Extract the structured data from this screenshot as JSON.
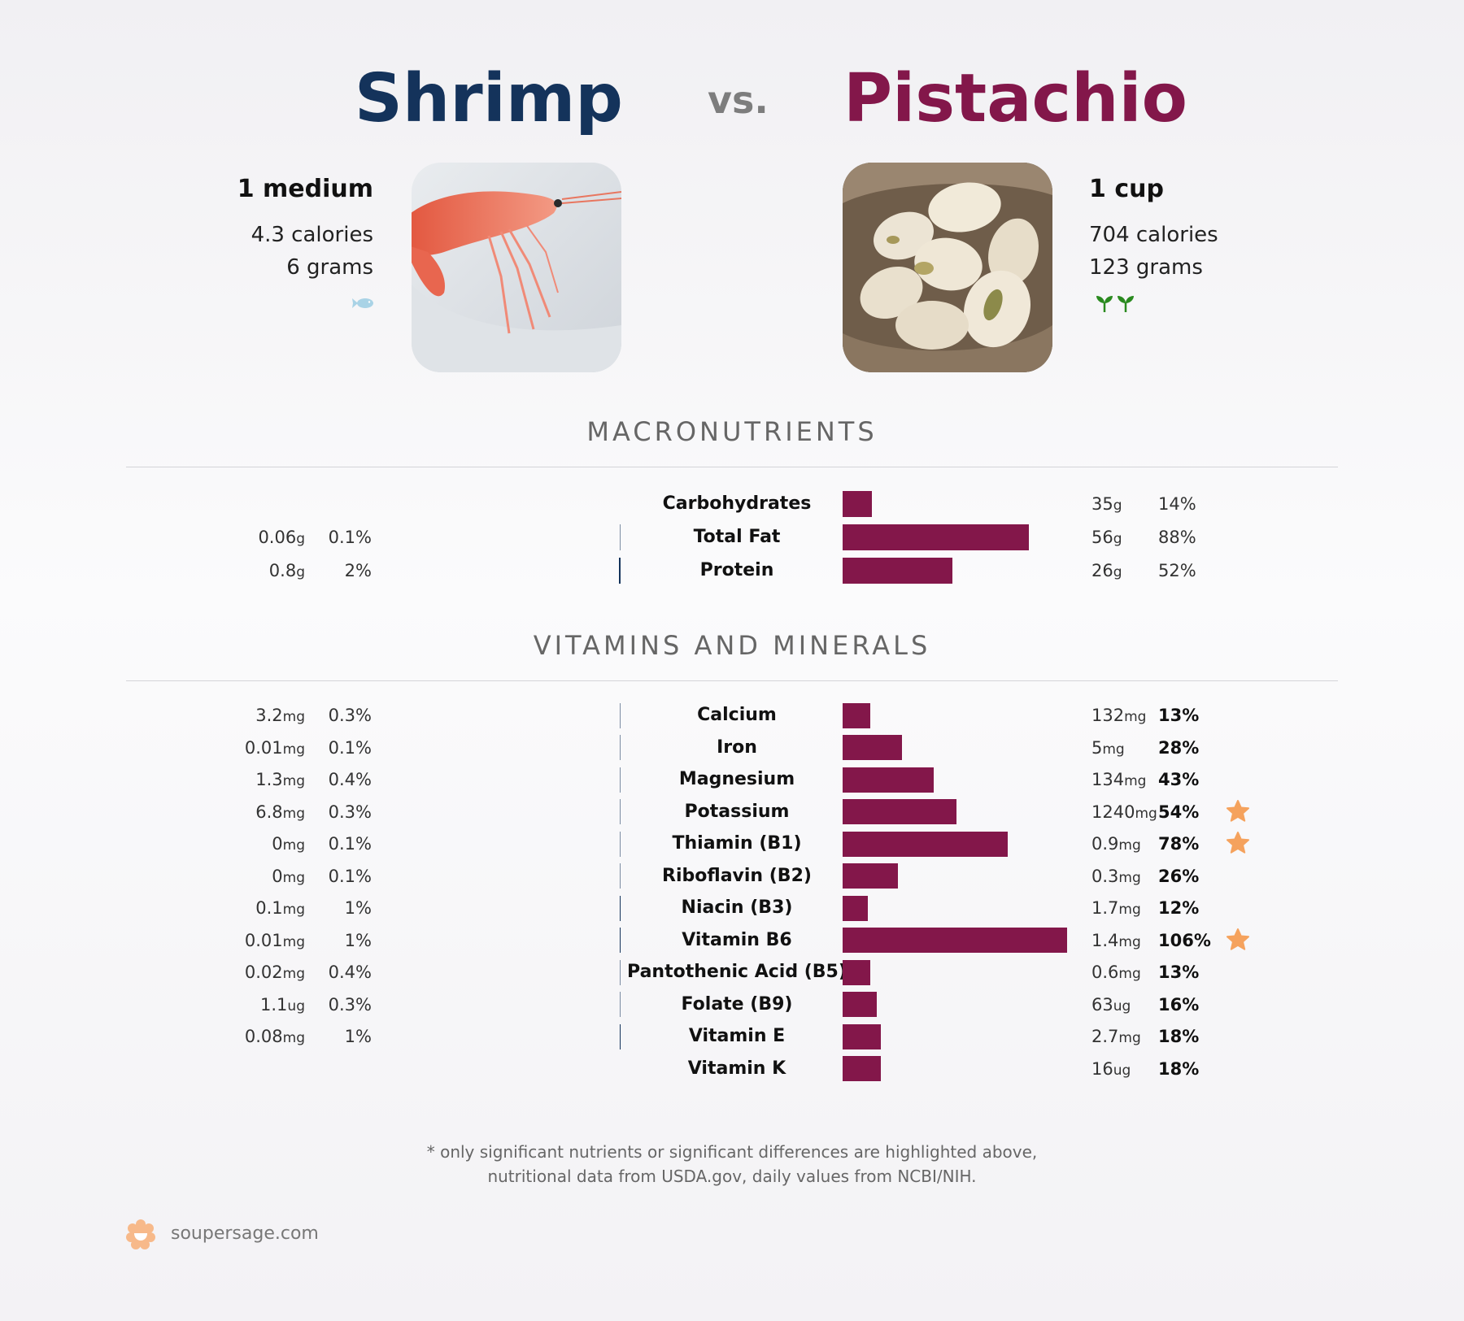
{
  "header": {
    "left_food": "Shrimp",
    "vs": "vs.",
    "right_food": "Pistachio"
  },
  "left": {
    "serving": "1 medium",
    "calories": "4.3 calories",
    "grams": "6 grams",
    "category_icon": "fish-icon",
    "image": "shrimp photo"
  },
  "right": {
    "serving": "1 cup",
    "calories": "704 calories",
    "grams": "123 grams",
    "category_icon": "sprout-icon",
    "image": "pistachio photo"
  },
  "colors": {
    "left": "#14335b",
    "right": "#83174a",
    "star": "#f5a25d"
  },
  "sections": {
    "macros_title": "MACRONUTRIENTS",
    "vitamins_title": "VITAMINS AND MINERALS"
  },
  "chart_data": [
    {
      "type": "bar",
      "title": "MACRONUTRIENTS",
      "categories": [
        "Carbohydrates",
        "Total Fat",
        "Protein"
      ],
      "series": [
        {
          "name": "Shrimp",
          "values_pct": [
            null,
            0.1,
            2
          ],
          "amounts": [
            null,
            {
              "num": "0.06",
              "unit": "g"
            },
            {
              "num": "0.8",
              "unit": "g"
            }
          ],
          "pct_labels": [
            null,
            "0.1%",
            "2%"
          ]
        },
        {
          "name": "Pistachio",
          "values_pct": [
            14,
            88,
            52
          ],
          "amounts": [
            {
              "num": "35",
              "unit": "g"
            },
            {
              "num": "56",
              "unit": "g"
            },
            {
              "num": "26",
              "unit": "g"
            }
          ],
          "pct_labels": [
            "14%",
            "88%",
            "52%"
          ],
          "highlight": [
            false,
            false,
            false
          ]
        }
      ]
    },
    {
      "type": "bar",
      "title": "VITAMINS AND MINERALS",
      "categories": [
        "Calcium",
        "Iron",
        "Magnesium",
        "Potassium",
        "Thiamin (B1)",
        "Riboflavin (B2)",
        "Niacin (B3)",
        "Vitamin B6",
        "Pantothenic Acid (B5)",
        "Folate (B9)",
        "Vitamin E",
        "Vitamin K"
      ],
      "series": [
        {
          "name": "Shrimp",
          "values_pct": [
            0.3,
            0.1,
            0.4,
            0.3,
            0.1,
            0.1,
            1,
            1,
            0.4,
            0.3,
            1,
            null
          ],
          "amounts": [
            {
              "num": "3.2",
              "unit": "mg"
            },
            {
              "num": "0.01",
              "unit": "mg"
            },
            {
              "num": "1.3",
              "unit": "mg"
            },
            {
              "num": "6.8",
              "unit": "mg"
            },
            {
              "num": "0",
              "unit": "mg"
            },
            {
              "num": "0",
              "unit": "mg"
            },
            {
              "num": "0.1",
              "unit": "mg"
            },
            {
              "num": "0.01",
              "unit": "mg"
            },
            {
              "num": "0.02",
              "unit": "mg"
            },
            {
              "num": "1.1",
              "unit": "ug"
            },
            {
              "num": "0.08",
              "unit": "mg"
            },
            null
          ],
          "pct_labels": [
            "0.3%",
            "0.1%",
            "0.4%",
            "0.3%",
            "0.1%",
            "0.1%",
            "1%",
            "1%",
            "0.4%",
            "0.3%",
            "1%",
            null
          ]
        },
        {
          "name": "Pistachio",
          "values_pct": [
            13,
            28,
            43,
            54,
            78,
            26,
            12,
            106,
            13,
            16,
            18,
            18
          ],
          "amounts": [
            {
              "num": "132",
              "unit": "mg"
            },
            {
              "num": "5",
              "unit": "mg"
            },
            {
              "num": "134",
              "unit": "mg"
            },
            {
              "num": "1240",
              "unit": "mg"
            },
            {
              "num": "0.9",
              "unit": "mg"
            },
            {
              "num": "0.3",
              "unit": "mg"
            },
            {
              "num": "1.7",
              "unit": "mg"
            },
            {
              "num": "1.4",
              "unit": "mg"
            },
            {
              "num": "0.6",
              "unit": "mg"
            },
            {
              "num": "63",
              "unit": "ug"
            },
            {
              "num": "2.7",
              "unit": "mg"
            },
            {
              "num": "16",
              "unit": "ug"
            }
          ],
          "pct_labels": [
            "13%",
            "28%",
            "43%",
            "54%",
            "78%",
            "26%",
            "12%",
            "106%",
            "13%",
            "16%",
            "18%",
            "18%"
          ],
          "highlight": [
            false,
            false,
            false,
            true,
            true,
            false,
            false,
            true,
            false,
            false,
            false,
            false
          ]
        }
      ]
    }
  ],
  "footer": {
    "note_line1": "* only significant nutrients or significant differences are highlighted above,",
    "note_line2": "nutritional data from USDA.gov, daily values from NCBI/NIH.",
    "brand": "soupersage.com"
  }
}
